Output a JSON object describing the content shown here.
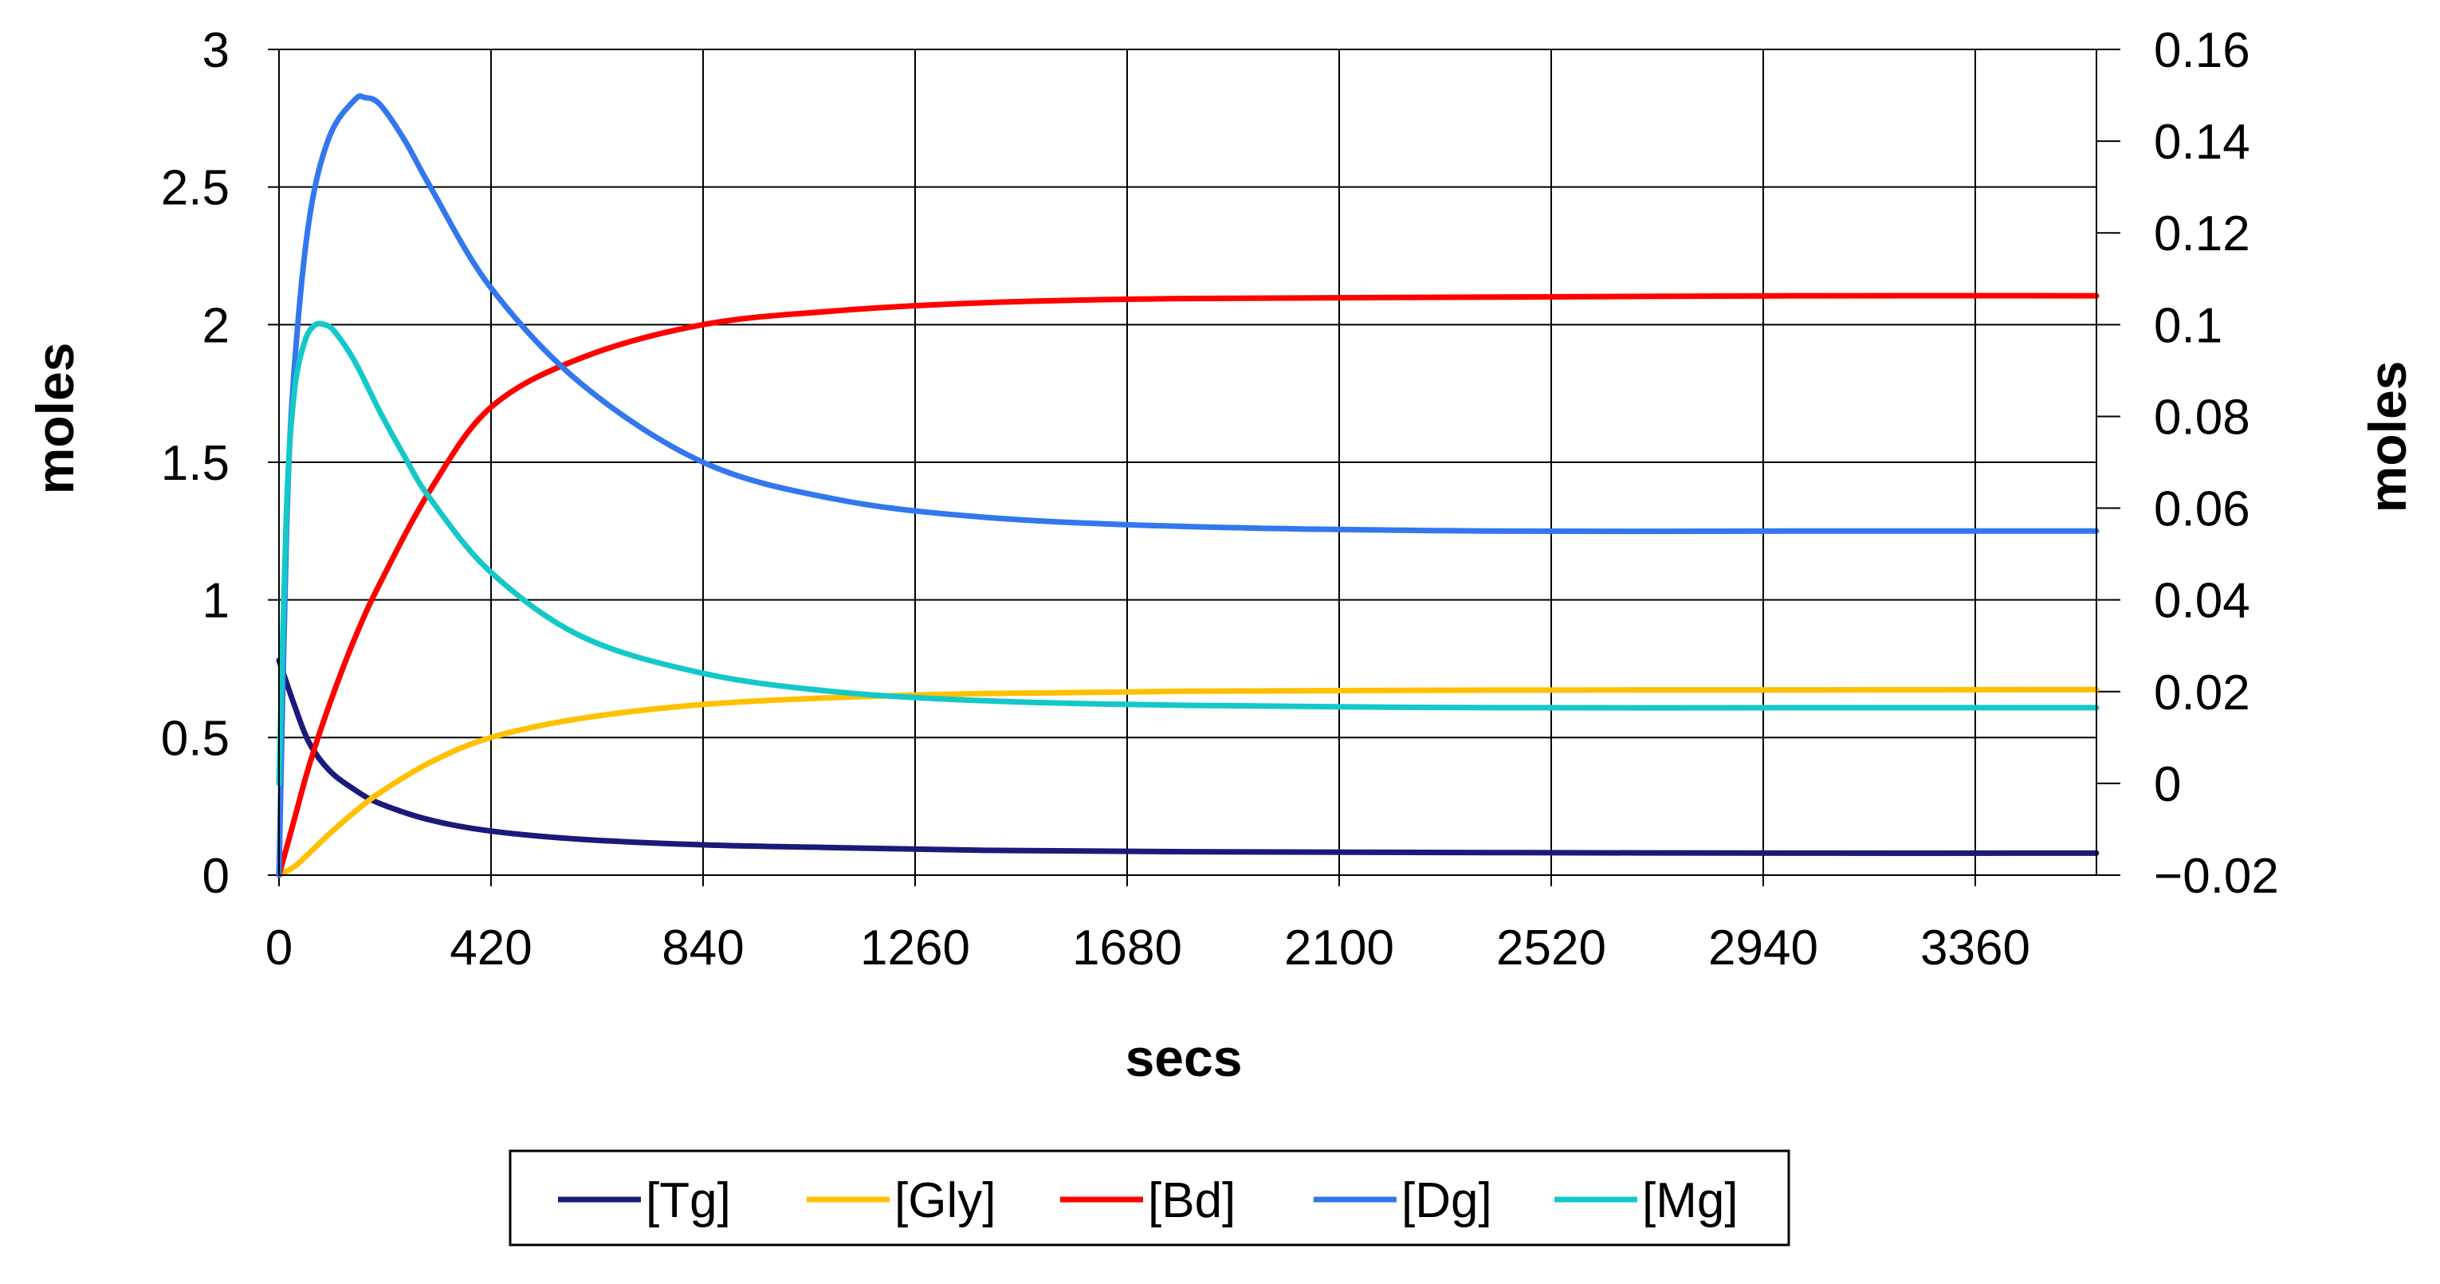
{
  "chart_data": {
    "type": "line",
    "title": "",
    "xlabel": "secs",
    "ylabel": "moles",
    "y2label": "moles",
    "xlim": [
      0,
      3600
    ],
    "ylim": [
      0,
      3
    ],
    "y2lim": [
      -0.02,
      0.16
    ],
    "x_ticks": [
      0,
      420,
      840,
      1260,
      1680,
      2100,
      2520,
      2940,
      3360
    ],
    "y_ticks": [
      0,
      0.5,
      1,
      1.5,
      2,
      2.5,
      3
    ],
    "y_tick_labels": [
      "0",
      "0.5",
      "1",
      "1.5",
      "2",
      "2.5",
      "3"
    ],
    "y2_ticks": [
      -0.02,
      0,
      0.02,
      0.04,
      0.06,
      0.08,
      0.1,
      0.12,
      0.14,
      0.16
    ],
    "y2_tick_labels": [
      "−0.02",
      "0",
      "0.02",
      "0.04",
      "0.06",
      "0.08",
      "0.1",
      "0.12",
      "0.14",
      "0.16"
    ],
    "grid": true,
    "legend_position": "bottom-center",
    "series": [
      {
        "name": "[Tg]",
        "color": "#1a1a7a",
        "axis": "left",
        "x": [
          0,
          30,
          60,
          100,
          150,
          200,
          300,
          420,
          600,
          840,
          1100,
          1400,
          1800,
          2400,
          3000,
          3600
        ],
        "y": [
          0.78,
          0.62,
          0.48,
          0.38,
          0.31,
          0.26,
          0.2,
          0.16,
          0.13,
          0.11,
          0.1,
          0.09,
          0.085,
          0.082,
          0.08,
          0.08
        ]
      },
      {
        "name": "[Gly]",
        "color": "#ffc000",
        "axis": "left",
        "x": [
          0,
          30,
          60,
          100,
          150,
          200,
          300,
          420,
          600,
          840,
          1100,
          1400,
          1800,
          2400,
          3000,
          3600
        ],
        "y": [
          0,
          0.03,
          0.08,
          0.15,
          0.23,
          0.3,
          0.41,
          0.5,
          0.57,
          0.62,
          0.645,
          0.66,
          0.668,
          0.672,
          0.673,
          0.674
        ]
      },
      {
        "name": "[Bd]",
        "color": "#ff0000",
        "axis": "left",
        "x": [
          0,
          30,
          60,
          100,
          150,
          200,
          300,
          420,
          600,
          840,
          1100,
          1400,
          1800,
          2400,
          3000,
          3600
        ],
        "y": [
          0,
          0.2,
          0.4,
          0.62,
          0.86,
          1.06,
          1.4,
          1.7,
          1.88,
          2.0,
          2.05,
          2.08,
          2.095,
          2.1,
          2.105,
          2.105
        ]
      },
      {
        "name": "[Dg]",
        "color": "#3377ee",
        "axis": "right",
        "x": [
          0,
          15,
          30,
          60,
          100,
          150,
          170,
          200,
          250,
          300,
          420,
          600,
          840,
          1100,
          1400,
          1800,
          2400,
          3000,
          3600
        ],
        "y": [
          -0.02,
          0.055,
          0.09,
          0.123,
          0.141,
          0.149,
          0.1495,
          0.148,
          0.14,
          0.13,
          0.108,
          0.087,
          0.07,
          0.062,
          0.058,
          0.056,
          0.055,
          0.055,
          0.055
        ]
      },
      {
        "name": "[Mg]",
        "color": "#14c8c8",
        "axis": "right",
        "x": [
          0,
          15,
          30,
          50,
          70,
          90,
          110,
          150,
          200,
          250,
          300,
          420,
          600,
          840,
          1100,
          1400,
          1800,
          2400,
          3000,
          3600
        ],
        "y": [
          0,
          0.06,
          0.085,
          0.096,
          0.0998,
          0.1,
          0.0985,
          0.092,
          0.081,
          0.071,
          0.062,
          0.046,
          0.032,
          0.024,
          0.02,
          0.018,
          0.017,
          0.0165,
          0.0165,
          0.0165
        ]
      }
    ]
  }
}
